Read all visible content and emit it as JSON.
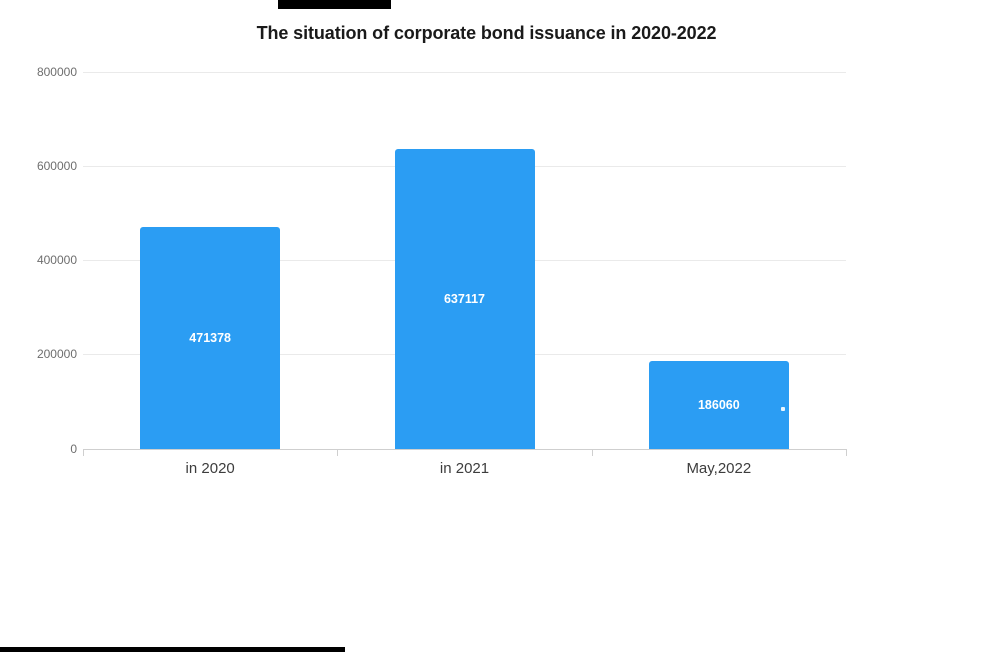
{
  "title": "The situation of corporate bond issuance in 2020-2022",
  "chart_data": {
    "type": "bar",
    "title": "The situation of corporate bond issuance in 2020-2022",
    "categories": [
      "in 2020",
      "in 2021",
      "May,2022"
    ],
    "values": [
      471378,
      637117,
      186060
    ],
    "value_labels": [
      "471378",
      "637117",
      "186060"
    ],
    "xlabel": "",
    "ylabel": "",
    "ylim": [
      0,
      800000
    ],
    "yticks": [
      0,
      200000,
      400000,
      600000,
      800000
    ],
    "ytick_labels": [
      "0",
      "200000",
      "400000",
      "600000",
      "800000"
    ],
    "grid": true,
    "legend": false,
    "legend_position": "none",
    "bar_color": "#2b9df3",
    "value_label_color": "#ffffff"
  },
  "colors": {
    "background": "#ffffff",
    "bar": "#2b9df3",
    "title_text": "#1a1a1a",
    "ytick_label": "#6e6e6e",
    "xtick_label": "#3d3d3d",
    "gridline": "#eaeaea",
    "axis_line": "#cfcfcf",
    "redaction_bar": "#000000"
  }
}
